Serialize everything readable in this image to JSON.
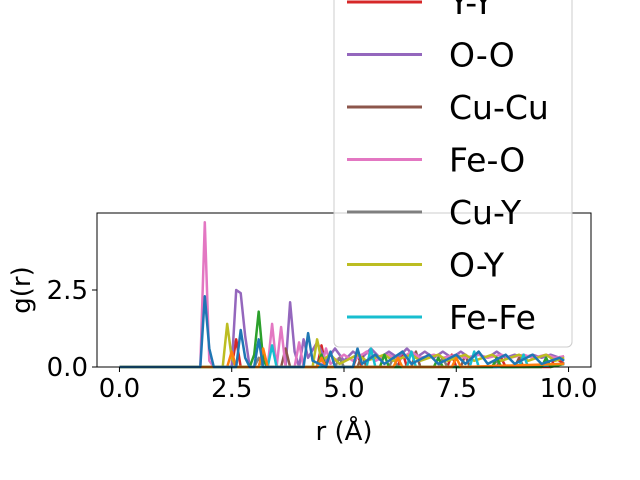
{
  "chart_data": {
    "type": "line",
    "title": "",
    "xlabel": "r (Å)",
    "ylabel": "g(r)",
    "xlim": [
      -0.5,
      10.5
    ],
    "ylim": [
      0,
      5.0
    ],
    "xticks": [
      {
        "value": 0.0,
        "label": "0.0"
      },
      {
        "value": 2.5,
        "label": "2.5"
      },
      {
        "value": 5.0,
        "label": "5.0"
      },
      {
        "value": 7.5,
        "label": "7.5"
      },
      {
        "value": 10.0,
        "label": "10.0"
      }
    ],
    "yticks": [
      {
        "value": 0.0,
        "label": "0.0"
      },
      {
        "value": 2.5,
        "label": "2.5"
      }
    ],
    "grid": false,
    "legend_placement": "upper right (overflowing top of figure)",
    "series": [
      {
        "name": "Y-Y",
        "color": "#d62728",
        "points": [
          [
            0,
            0
          ],
          [
            1.8,
            0
          ],
          [
            2.5,
            0
          ],
          [
            2.6,
            0.9
          ],
          [
            2.7,
            0
          ],
          [
            3.1,
            0
          ],
          [
            3.2,
            0.5
          ],
          [
            3.3,
            0
          ],
          [
            4.4,
            0
          ],
          [
            4.5,
            0.7
          ],
          [
            4.6,
            0
          ],
          [
            5.2,
            0
          ],
          [
            5.3,
            0.4
          ],
          [
            5.4,
            0
          ],
          [
            6.2,
            0
          ],
          [
            6.3,
            0.5
          ],
          [
            6.4,
            0
          ],
          [
            7.3,
            0
          ],
          [
            7.4,
            0.4
          ],
          [
            7.5,
            0
          ],
          [
            8.4,
            0
          ],
          [
            8.5,
            0.3
          ],
          [
            8.6,
            0
          ],
          [
            9.6,
            0
          ],
          [
            9.7,
            0.3
          ],
          [
            9.9,
            0.1
          ]
        ]
      },
      {
        "name": "O-O",
        "color": "#9467bd",
        "points": [
          [
            0,
            0
          ],
          [
            2.5,
            0
          ],
          [
            2.6,
            2.5
          ],
          [
            2.7,
            2.4
          ],
          [
            2.8,
            1.0
          ],
          [
            2.9,
            0
          ],
          [
            3.7,
            0
          ],
          [
            3.8,
            2.1
          ],
          [
            3.9,
            0.5
          ],
          [
            4.0,
            0
          ],
          [
            4.1,
            0.9
          ],
          [
            4.2,
            0.3
          ],
          [
            4.4,
            0.8
          ],
          [
            4.6,
            0.2
          ],
          [
            4.8,
            0.6
          ],
          [
            5.0,
            0.2
          ],
          [
            5.2,
            0.5
          ],
          [
            5.4,
            0.3
          ],
          [
            5.6,
            0.6
          ],
          [
            5.8,
            0.3
          ],
          [
            6.0,
            0.5
          ],
          [
            6.2,
            0.3
          ],
          [
            6.4,
            0.6
          ],
          [
            6.6,
            0.3
          ],
          [
            6.8,
            0.5
          ],
          [
            7.0,
            0.3
          ],
          [
            7.2,
            0.5
          ],
          [
            7.4,
            0.3
          ],
          [
            7.6,
            0.5
          ],
          [
            7.8,
            0.3
          ],
          [
            8.0,
            0.4
          ],
          [
            8.2,
            0.3
          ],
          [
            8.4,
            0.5
          ],
          [
            8.6,
            0.3
          ],
          [
            8.8,
            0.4
          ],
          [
            9.0,
            0.3
          ],
          [
            9.2,
            0.4
          ],
          [
            9.4,
            0.3
          ],
          [
            9.6,
            0.4
          ],
          [
            9.8,
            0.3
          ],
          [
            9.9,
            0.35
          ]
        ]
      },
      {
        "name": "Cu-Cu",
        "color": "#8c564b",
        "points": [
          [
            0,
            0
          ],
          [
            3.6,
            0
          ],
          [
            3.7,
            0.6
          ],
          [
            3.8,
            0
          ],
          [
            5.3,
            0
          ],
          [
            5.4,
            0.4
          ],
          [
            5.5,
            0
          ],
          [
            6.5,
            0
          ],
          [
            6.6,
            0.5
          ],
          [
            6.7,
            0
          ],
          [
            7.6,
            0
          ],
          [
            7.7,
            0.4
          ],
          [
            7.8,
            0
          ],
          [
            8.8,
            0
          ],
          [
            8.9,
            0.3
          ],
          [
            9.0,
            0
          ],
          [
            9.9,
            0.1
          ]
        ]
      },
      {
        "name": "Fe-O",
        "color": "#e377c2",
        "points": [
          [
            0,
            0
          ],
          [
            1.8,
            0
          ],
          [
            1.9,
            4.7
          ],
          [
            2.0,
            0.2
          ],
          [
            2.1,
            0
          ],
          [
            3.3,
            0
          ],
          [
            3.4,
            1.4
          ],
          [
            3.5,
            0
          ],
          [
            3.6,
            1.3
          ],
          [
            3.7,
            0
          ],
          [
            3.9,
            0
          ],
          [
            4.0,
            0.8
          ],
          [
            4.1,
            0
          ],
          [
            4.5,
            0
          ],
          [
            4.6,
            0.6
          ],
          [
            4.7,
            0.1
          ],
          [
            5.0,
            0.4
          ],
          [
            5.2,
            0.2
          ],
          [
            5.5,
            0.5
          ],
          [
            5.7,
            0.2
          ],
          [
            6.0,
            0.4
          ],
          [
            6.2,
            0.2
          ],
          [
            6.5,
            0.5
          ],
          [
            6.7,
            0.3
          ],
          [
            7.0,
            0.4
          ],
          [
            7.2,
            0.3
          ],
          [
            7.5,
            0.4
          ],
          [
            7.7,
            0.3
          ],
          [
            8.0,
            0.4
          ],
          [
            8.2,
            0.3
          ],
          [
            8.5,
            0.4
          ],
          [
            8.7,
            0.3
          ],
          [
            9.0,
            0.4
          ],
          [
            9.2,
            0.3
          ],
          [
            9.5,
            0.4
          ],
          [
            9.7,
            0.3
          ],
          [
            9.9,
            0.35
          ]
        ]
      },
      {
        "name": "Cu-Y",
        "color": "#7f7f7f",
        "points": [
          [
            0,
            0
          ],
          [
            3.0,
            0
          ],
          [
            3.1,
            0.3
          ],
          [
            3.2,
            0
          ],
          [
            4.8,
            0
          ],
          [
            4.9,
            0.3
          ],
          [
            5.0,
            0
          ],
          [
            6.0,
            0
          ],
          [
            6.1,
            0.3
          ],
          [
            6.2,
            0
          ],
          [
            7.1,
            0
          ],
          [
            7.2,
            0.3
          ],
          [
            7.3,
            0
          ],
          [
            8.3,
            0
          ],
          [
            8.4,
            0.2
          ],
          [
            8.5,
            0
          ],
          [
            9.9,
            0.1
          ]
        ]
      },
      {
        "name": "O-Y",
        "color": "#bcbd22",
        "points": [
          [
            0,
            0
          ],
          [
            2.3,
            0
          ],
          [
            2.4,
            1.4
          ],
          [
            2.5,
            0.3
          ],
          [
            2.6,
            0
          ],
          [
            4.3,
            0
          ],
          [
            4.4,
            0.9
          ],
          [
            4.5,
            0.2
          ],
          [
            4.7,
            0.4
          ],
          [
            4.9,
            0.1
          ],
          [
            5.3,
            0.4
          ],
          [
            5.5,
            0.2
          ],
          [
            5.9,
            0.4
          ],
          [
            6.1,
            0.2
          ],
          [
            6.5,
            0.4
          ],
          [
            6.7,
            0.2
          ],
          [
            7.1,
            0.4
          ],
          [
            7.3,
            0.2
          ],
          [
            7.7,
            0.4
          ],
          [
            7.9,
            0.2
          ],
          [
            8.3,
            0.4
          ],
          [
            8.5,
            0.2
          ],
          [
            8.9,
            0.4
          ],
          [
            9.1,
            0.2
          ],
          [
            9.5,
            0.4
          ],
          [
            9.7,
            0.2
          ],
          [
            9.9,
            0.3
          ]
        ]
      },
      {
        "name": "Fe-Fe",
        "color": "#17becf",
        "points": [
          [
            0,
            0
          ],
          [
            3.3,
            0
          ],
          [
            3.4,
            0.7
          ],
          [
            3.5,
            0
          ],
          [
            5.5,
            0
          ],
          [
            5.6,
            0.6
          ],
          [
            5.7,
            0
          ],
          [
            6.4,
            0
          ],
          [
            6.5,
            0.5
          ],
          [
            6.6,
            0
          ],
          [
            7.8,
            0
          ],
          [
            7.9,
            0.5
          ],
          [
            8.0,
            0
          ],
          [
            8.9,
            0
          ],
          [
            9.0,
            0.4
          ],
          [
            9.1,
            0
          ],
          [
            9.9,
            0.1
          ]
        ]
      },
      {
        "name": "",
        "color": "#2ca02c",
        "points": [
          [
            0,
            0
          ],
          [
            2.9,
            0
          ],
          [
            3.0,
            0.4
          ],
          [
            3.1,
            1.8
          ],
          [
            3.2,
            0.2
          ],
          [
            3.3,
            0
          ],
          [
            4.4,
            0
          ],
          [
            4.5,
            0.4
          ],
          [
            4.6,
            0
          ],
          [
            5.8,
            0
          ],
          [
            5.9,
            0.4
          ],
          [
            6.0,
            0
          ],
          [
            7.0,
            0
          ],
          [
            7.1,
            0.3
          ],
          [
            7.2,
            0
          ],
          [
            8.3,
            0
          ],
          [
            8.4,
            0.3
          ],
          [
            8.5,
            0
          ],
          [
            9.4,
            0
          ],
          [
            9.5,
            0.3
          ],
          [
            9.6,
            0
          ],
          [
            9.9,
            0.1
          ]
        ]
      },
      {
        "name": "",
        "color": "#ff7f0e",
        "points": [
          [
            0,
            0
          ],
          [
            2.4,
            0
          ],
          [
            2.5,
            0.5
          ],
          [
            2.6,
            0
          ],
          [
            3.1,
            0
          ],
          [
            3.2,
            0.6
          ],
          [
            3.3,
            0
          ],
          [
            4.4,
            0
          ],
          [
            4.5,
            0.3
          ],
          [
            4.6,
            0
          ],
          [
            6.1,
            0
          ],
          [
            6.2,
            0.3
          ],
          [
            6.3,
            0
          ],
          [
            7.4,
            0
          ],
          [
            7.5,
            0.3
          ],
          [
            7.6,
            0
          ],
          [
            9.9,
            0.1
          ]
        ]
      },
      {
        "name": "",
        "color": "#1f77b4",
        "points": [
          [
            0,
            0
          ],
          [
            1.8,
            0
          ],
          [
            1.9,
            2.3
          ],
          [
            2.0,
            0.6
          ],
          [
            2.1,
            0
          ],
          [
            2.6,
            0
          ],
          [
            2.7,
            1.2
          ],
          [
            2.8,
            0.3
          ],
          [
            2.9,
            0
          ],
          [
            3.0,
            0
          ],
          [
            3.1,
            0.9
          ],
          [
            3.2,
            0
          ],
          [
            4.1,
            0
          ],
          [
            4.2,
            1.1
          ],
          [
            4.3,
            0.2
          ],
          [
            4.6,
            0
          ],
          [
            4.7,
            0.5
          ],
          [
            4.8,
            0
          ],
          [
            5.2,
            0
          ],
          [
            5.3,
            0.6
          ],
          [
            5.4,
            0.1
          ],
          [
            5.7,
            0.4
          ],
          [
            5.9,
            0.1
          ],
          [
            6.3,
            0.5
          ],
          [
            6.5,
            0.1
          ],
          [
            6.9,
            0.4
          ],
          [
            7.1,
            0.1
          ],
          [
            7.5,
            0.4
          ],
          [
            7.7,
            0.1
          ],
          [
            8.0,
            0.5
          ],
          [
            8.2,
            0.1
          ],
          [
            8.6,
            0.4
          ],
          [
            8.8,
            0.1
          ],
          [
            9.2,
            0.4
          ],
          [
            9.4,
            0.1
          ],
          [
            9.8,
            0.3
          ],
          [
            9.9,
            0.2
          ]
        ]
      }
    ],
    "legend_entries": [
      "Y-Y",
      "O-O",
      "Cu-Cu",
      "Fe-O",
      "Cu-Y",
      "O-Y",
      "Fe-Fe"
    ]
  }
}
